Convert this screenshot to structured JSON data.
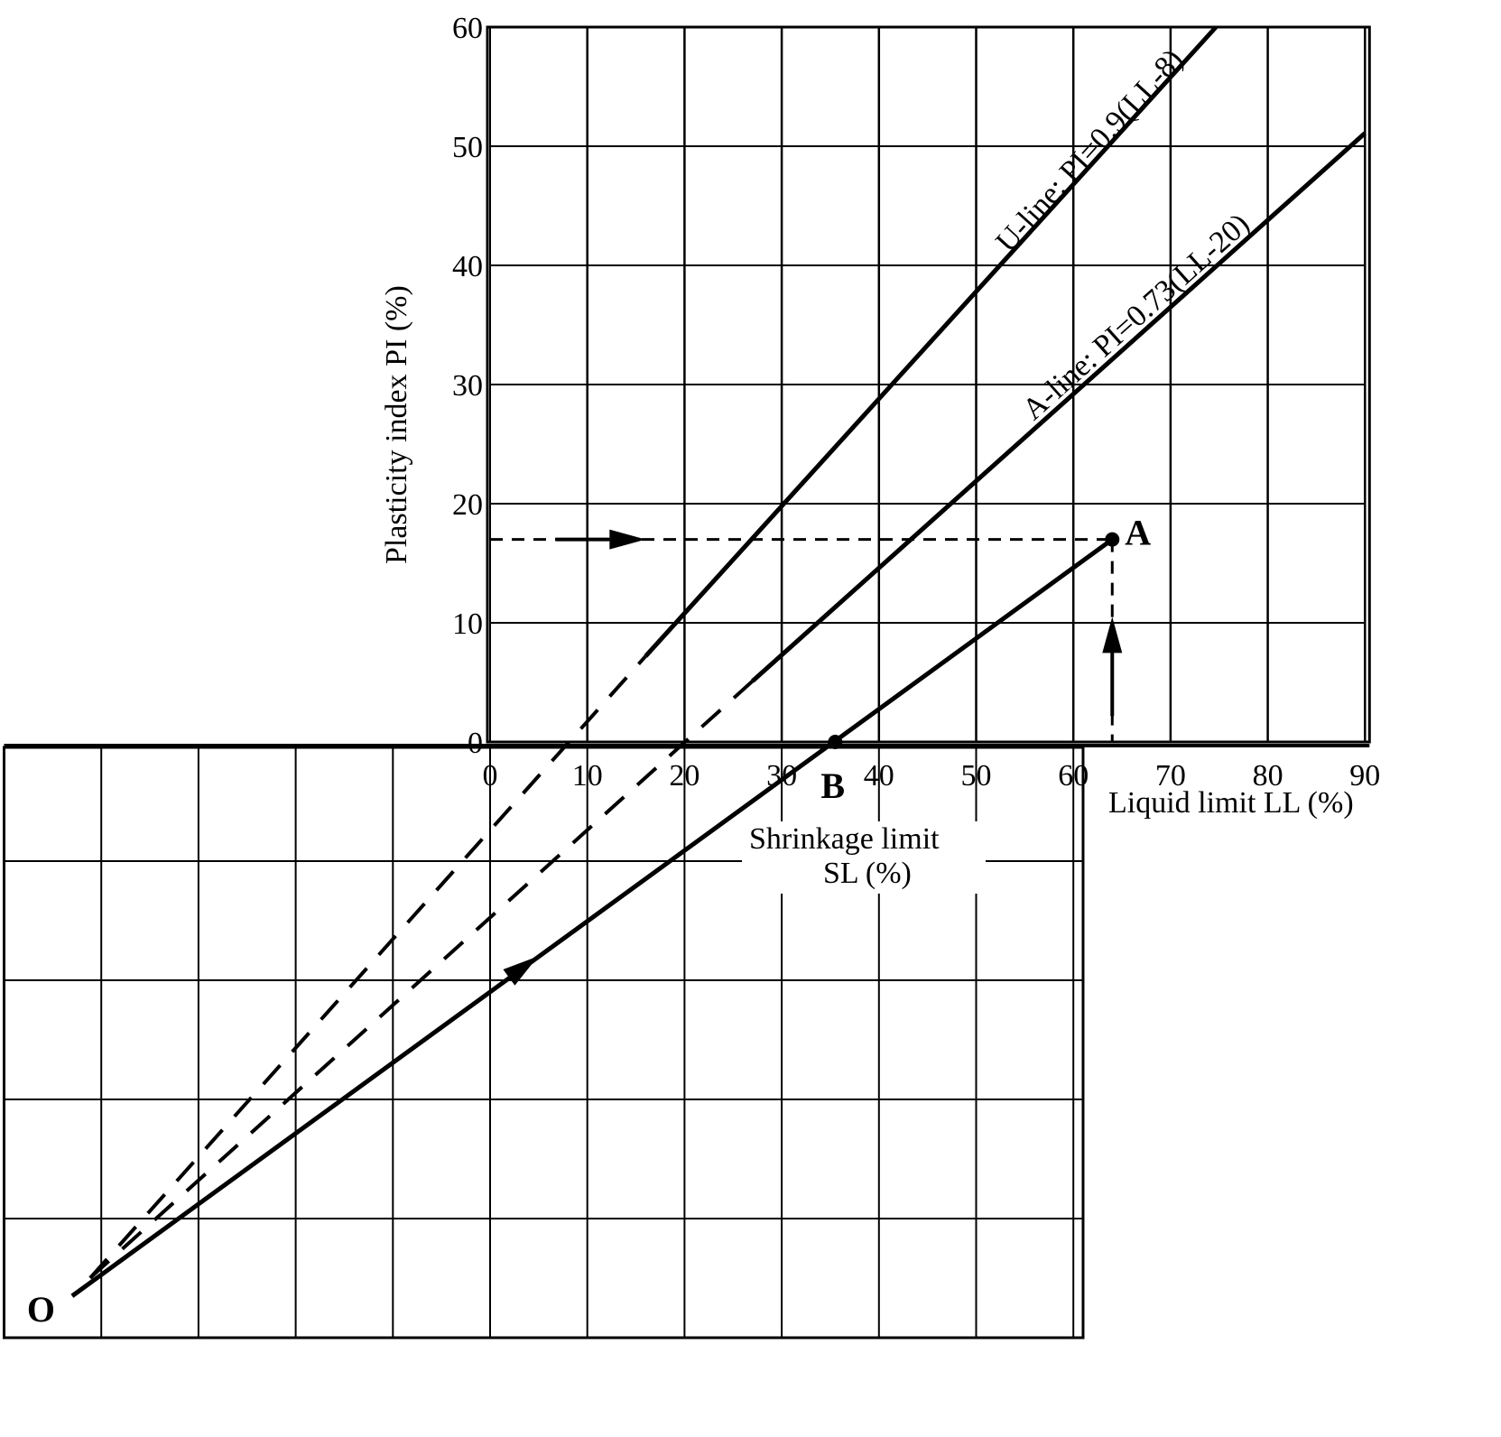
{
  "chart_data": {
    "type": "line",
    "xlabel": "Liquid limit LL (%)",
    "ylabel": "Plasticity index PI (%)",
    "sublabel_line1": "Shrinkage limit",
    "sublabel_line2": "SL (%)",
    "xlim": [
      0,
      90
    ],
    "ylim": [
      0,
      60
    ],
    "extended_xlim": [
      -50,
      61
    ],
    "extended_ylim": [
      -50,
      0
    ],
    "grid": true,
    "x_ticks": [
      0,
      10,
      20,
      30,
      40,
      50,
      60,
      70,
      80,
      90
    ],
    "y_ticks": [
      0,
      10,
      20,
      30,
      40,
      50,
      60
    ],
    "x_tick_labels": [
      "0",
      "10",
      "20",
      "30",
      "40",
      "50",
      "60",
      "70",
      "80",
      "90"
    ],
    "y_tick_labels": [
      "0",
      "10",
      "20",
      "30",
      "40",
      "50",
      "60"
    ],
    "lines": [
      {
        "name": "U-line",
        "label": "U-line: PI=0.9(LL-8)",
        "slope": 0.9,
        "intercept_ll": 8,
        "solid_from_ll": 16
      },
      {
        "name": "A-line",
        "label": "A-line: PI=0.73(LL-20)",
        "slope": 0.73,
        "intercept_ll": 20,
        "solid_from_ll": 27
      }
    ],
    "points": [
      {
        "label": "A",
        "ll": 64,
        "pi": 17
      },
      {
        "label": "B",
        "ll": 35.5,
        "pi": 0
      },
      {
        "label": "O",
        "ll": -43,
        "pi": -46.5
      }
    ]
  }
}
